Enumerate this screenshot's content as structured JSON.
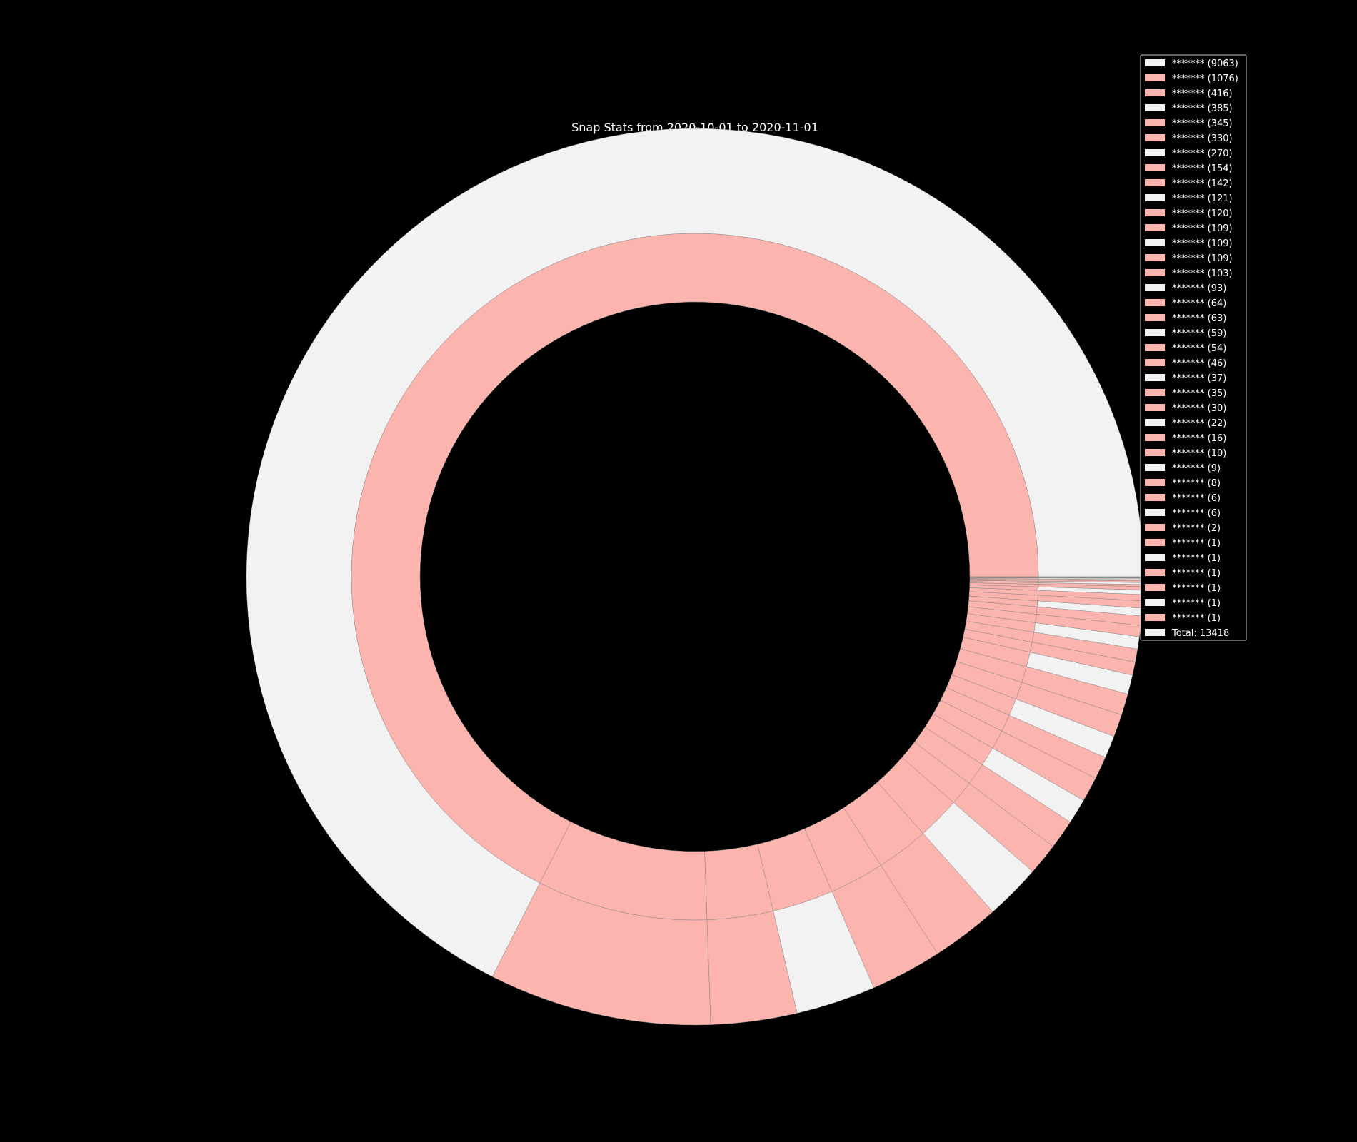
{
  "chart_data": {
    "type": "pie",
    "variant": "nested donut",
    "title": "Snap Stats from 2020-10-01 to 2020-11-01",
    "colors": {
      "outer_light": "#f2f2f2",
      "salmon": "#fbb4ae",
      "background": "#000000",
      "edge": "#888888"
    },
    "outer_ring": [
      {
        "label": "*******",
        "value": 9063,
        "color": "#f2f2f2"
      },
      {
        "label": "*******",
        "value": 1076,
        "color": "#fbb4ae"
      },
      {
        "label": "*******",
        "value": 416,
        "color": "#fbb4ae"
      },
      {
        "label": "*******",
        "value": 385,
        "color": "#f2f2f2"
      },
      {
        "label": "*******",
        "value": 345,
        "color": "#fbb4ae"
      },
      {
        "label": "*******",
        "value": 330,
        "color": "#fbb4ae"
      },
      {
        "label": "*******",
        "value": 270,
        "color": "#f2f2f2"
      },
      {
        "label": "*******",
        "value": 154,
        "color": "#fbb4ae"
      },
      {
        "label": "*******",
        "value": 142,
        "color": "#fbb4ae"
      },
      {
        "label": "*******",
        "value": 121,
        "color": "#f2f2f2"
      },
      {
        "label": "*******",
        "value": 120,
        "color": "#fbb4ae"
      },
      {
        "label": "*******",
        "value": 109,
        "color": "#fbb4ae"
      },
      {
        "label": "*******",
        "value": 109,
        "color": "#f2f2f2"
      },
      {
        "label": "*******",
        "value": 109,
        "color": "#fbb4ae"
      },
      {
        "label": "*******",
        "value": 103,
        "color": "#fbb4ae"
      },
      {
        "label": "*******",
        "value": 93,
        "color": "#f2f2f2"
      },
      {
        "label": "*******",
        "value": 64,
        "color": "#fbb4ae"
      },
      {
        "label": "*******",
        "value": 63,
        "color": "#fbb4ae"
      },
      {
        "label": "*******",
        "value": 59,
        "color": "#f2f2f2"
      },
      {
        "label": "*******",
        "value": 54,
        "color": "#fbb4ae"
      },
      {
        "label": "*******",
        "value": 46,
        "color": "#fbb4ae"
      },
      {
        "label": "*******",
        "value": 37,
        "color": "#f2f2f2"
      },
      {
        "label": "*******",
        "value": 35,
        "color": "#fbb4ae"
      },
      {
        "label": "*******",
        "value": 30,
        "color": "#fbb4ae"
      },
      {
        "label": "*******",
        "value": 22,
        "color": "#f2f2f2"
      },
      {
        "label": "*******",
        "value": 16,
        "color": "#fbb4ae"
      },
      {
        "label": "*******",
        "value": 10,
        "color": "#fbb4ae"
      },
      {
        "label": "*******",
        "value": 9,
        "color": "#f2f2f2"
      },
      {
        "label": "*******",
        "value": 8,
        "color": "#fbb4ae"
      },
      {
        "label": "*******",
        "value": 6,
        "color": "#fbb4ae"
      },
      {
        "label": "*******",
        "value": 6,
        "color": "#f2f2f2"
      },
      {
        "label": "*******",
        "value": 2,
        "color": "#fbb4ae"
      },
      {
        "label": "*******",
        "value": 1,
        "color": "#fbb4ae"
      },
      {
        "label": "*******",
        "value": 1,
        "color": "#f2f2f2"
      },
      {
        "label": "*******",
        "value": 1,
        "color": "#fbb4ae"
      },
      {
        "label": "*******",
        "value": 1,
        "color": "#fbb4ae"
      },
      {
        "label": "*******",
        "value": 1,
        "color": "#f2f2f2"
      },
      {
        "label": "*******",
        "value": 1,
        "color": "#fbb4ae"
      }
    ],
    "inner_ring_values": [
      9063,
      1076,
      416,
      385,
      345,
      330,
      270,
      154,
      142,
      121,
      120,
      109,
      109,
      109,
      103,
      93,
      64,
      63,
      59,
      54,
      46,
      37,
      35,
      30,
      22,
      16,
      10,
      9,
      8,
      6,
      6,
      2,
      1,
      1,
      1,
      1,
      1,
      1
    ],
    "inner_ring_color": "#fbb4ae",
    "total_label": "Total: 13418",
    "legend": [
      "******* (9063)",
      "******* (1076)",
      "******* (416)",
      "******* (385)",
      "******* (345)",
      "******* (330)",
      "******* (270)",
      "******* (154)",
      "******* (142)",
      "******* (121)",
      "******* (120)",
      "******* (109)",
      "******* (109)",
      "******* (109)",
      "******* (103)",
      "******* (93)",
      "******* (64)",
      "******* (63)",
      "******* (59)",
      "******* (54)",
      "******* (46)",
      "******* (37)",
      "******* (35)",
      "******* (30)",
      "******* (22)",
      "******* (16)",
      "******* (10)",
      "******* (9)",
      "******* (8)",
      "******* (6)",
      "******* (6)",
      "******* (2)",
      "******* (1)",
      "******* (1)",
      "******* (1)",
      "******* (1)",
      "******* (1)",
      "******* (1)",
      "Total: 13418"
    ],
    "legend_placement": "top-right",
    "grid": false
  }
}
